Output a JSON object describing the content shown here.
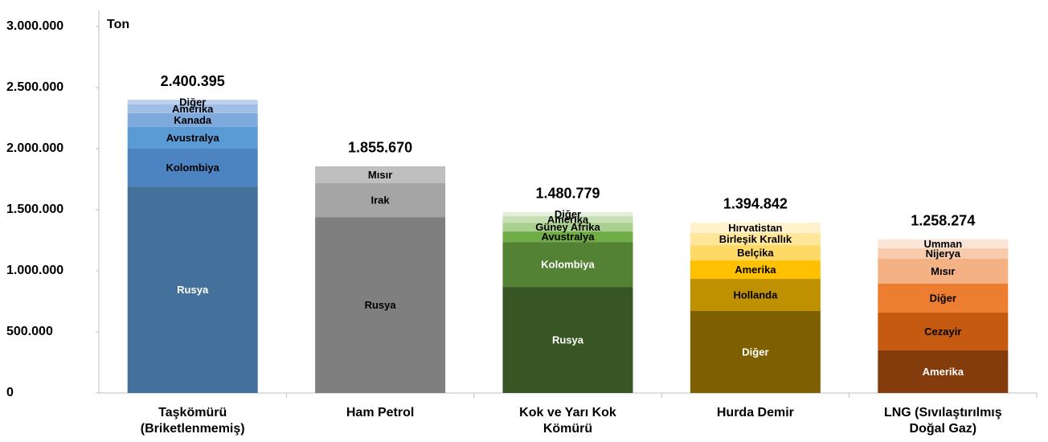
{
  "chart_data": {
    "type": "stacked_bar",
    "unit_label": "Ton",
    "ylim": [
      0,
      3000000
    ],
    "yticks": [
      0,
      {
        "value": 500000,
        "label": "500.000"
      },
      {
        "value": 1000000,
        "label": "1.000.000"
      },
      {
        "value": 1500000,
        "label": "1.500.000"
      },
      {
        "value": 2000000,
        "label": "2.000.000"
      },
      {
        "value": 2500000,
        "label": "2.500.000"
      },
      {
        "value": 3000000,
        "label": "3.000.000"
      }
    ],
    "stacks": [
      {
        "category": [
          "Taşkömürü",
          "(Briketlenmemiş)"
        ],
        "total": 2400395,
        "total_label": "2.400.395",
        "segments": [
          {
            "name": "Rusya",
            "color": "#44709c",
            "value": 1690000
          },
          {
            "name": "Kolombiya",
            "color": "#4b84c0",
            "value": 310000
          },
          {
            "name": "Avustralya",
            "color": "#5b9bd5",
            "value": 178000
          },
          {
            "name": "Kanada",
            "color": "#7ea9dc",
            "value": 112000
          },
          {
            "name": "Amerika",
            "color": "#a1bfe6",
            "value": 72000
          },
          {
            "name": "Diğer",
            "color": "#bfd2ed",
            "value": 38395
          }
        ]
      },
      {
        "category": [
          "Ham Petrol"
        ],
        "total": 1855670,
        "total_label": "1.855.670",
        "segments": [
          {
            "name": "Rusya",
            "color": "#7f7f7f",
            "value": 1440000
          },
          {
            "name": "Irak",
            "color": "#a5a5a5",
            "value": 277000
          },
          {
            "name": "Mısır",
            "color": "#bfbfbf",
            "value": 138670
          }
        ]
      },
      {
        "category": [
          "Kok ve Yarı Kok",
          "Kömürü"
        ],
        "total": 1480779,
        "total_label": "1.480.779",
        "segments": [
          {
            "name": "Rusya",
            "color": "#375623",
            "value": 868000
          },
          {
            "name": "Kolombiya",
            "color": "#548235",
            "value": 368000
          },
          {
            "name": "Avustralya",
            "color": "#70ad47",
            "value": 86000
          },
          {
            "name": "Güney Afrika",
            "color": "#a9d08e",
            "value": 72000
          },
          {
            "name": "Amerika",
            "color": "#c6e0b4",
            "value": 53000
          },
          {
            "name": "Diğer",
            "color": "#e2efda",
            "value": 33779
          }
        ]
      },
      {
        "category": [
          "Hurda Demir"
        ],
        "total": 1394842,
        "total_label": "1.394.842",
        "segments": [
          {
            "name": "Diğer",
            "color": "#7f6000",
            "value": 671000
          },
          {
            "name": "Hollanda",
            "color": "#bf9000",
            "value": 263000
          },
          {
            "name": "Amerika",
            "color": "#ffc000",
            "value": 151000
          },
          {
            "name": "Belçika",
            "color": "#ffd966",
            "value": 125000
          },
          {
            "name": "Birleşik Krallık",
            "color": "#ffe699",
            "value": 99000
          },
          {
            "name": "Hırvatistan",
            "color": "#fff2cc",
            "value": 85842
          }
        ]
      },
      {
        "category": [
          "LNG (Sıvılaştırılmış",
          "Doğal Gaz)"
        ],
        "total": 1258274,
        "total_label": "1.258.274",
        "segments": [
          {
            "name": "Amerika",
            "color": "#843c0c",
            "value": 349000
          },
          {
            "name": "Cezayir",
            "color": "#c55a11",
            "value": 309000
          },
          {
            "name": "Diğer",
            "color": "#ed7d31",
            "value": 237000
          },
          {
            "name": "Mısır",
            "color": "#f4b183",
            "value": 204000
          },
          {
            "name": "Nijerya",
            "color": "#f8cbad",
            "value": 85000
          },
          {
            "name": "Umman",
            "color": "#fbe5d6",
            "value": 74274
          }
        ]
      }
    ]
  }
}
